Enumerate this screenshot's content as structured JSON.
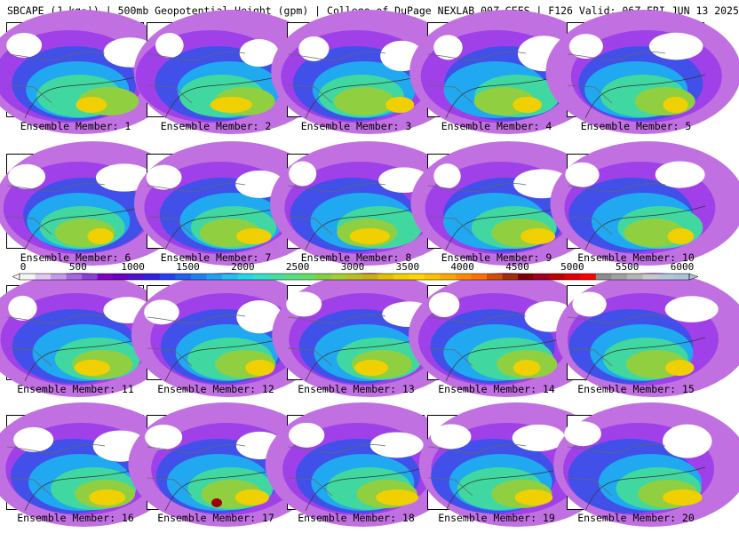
{
  "header": {
    "title": "SBCAPE (J kg⁻¹) | 500mb Geopotential Height (gpm) | College of DuPage NEXLAB 00Z GEFS | F126 Valid: 06Z FRI JUN 13 2025"
  },
  "colorbar": {
    "tick_labels": [
      "0",
      "500",
      "1000",
      "1500",
      "2000",
      "2500",
      "3000",
      "3500",
      "4000",
      "4500",
      "5000",
      "5500",
      "6000"
    ],
    "colors": [
      "#f5f5f5",
      "#e0c8f0",
      "#c59ae8",
      "#a46be0",
      "#8a3fd7",
      "#8000c0",
      "#6a00c8",
      "#5010d0",
      "#3020e0",
      "#2840f0",
      "#2060f0",
      "#2080f0",
      "#20a0f0",
      "#20c0f0",
      "#20d8e8",
      "#30e0c8",
      "#40e0a0",
      "#50e080",
      "#60e060",
      "#80d040",
      "#a0d030",
      "#b8c020",
      "#c8b010",
      "#e0c000",
      "#f0d000",
      "#ffd700",
      "#ffc000",
      "#ffa500",
      "#ff8c00",
      "#ff7000",
      "#d05000",
      "#a03000",
      "#800000",
      "#a00020",
      "#c00000",
      "#e00000",
      "#ff0000",
      "#8c8c8c",
      "#a0a0a0",
      "#b4b4b4",
      "#c8c8c8",
      "#b0c8d8",
      "#a8c4d4"
    ]
  },
  "panels": [
    {
      "label": "Ensemble Member: 1"
    },
    {
      "label": "Ensemble Member: 2"
    },
    {
      "label": "Ensemble Member: 3"
    },
    {
      "label": "Ensemble Member: 4"
    },
    {
      "label": "Ensemble Member: 5"
    },
    {
      "label": "Ensemble Member: 6"
    },
    {
      "label": "Ensemble Member: 7"
    },
    {
      "label": "Ensemble Member: 8"
    },
    {
      "label": "Ensemble Member: 9"
    },
    {
      "label": "Ensemble Member: 10"
    },
    {
      "label": "Ensemble Member: 11"
    },
    {
      "label": "Ensemble Member: 12"
    },
    {
      "label": "Ensemble Member: 13"
    },
    {
      "label": "Ensemble Member: 14"
    },
    {
      "label": "Ensemble Member: 15"
    },
    {
      "label": "Ensemble Member: 16"
    },
    {
      "label": "Ensemble Member: 17"
    },
    {
      "label": "Ensemble Member: 18"
    },
    {
      "label": "Ensemble Member: 19"
    },
    {
      "label": "Ensemble Member: 20"
    }
  ]
}
